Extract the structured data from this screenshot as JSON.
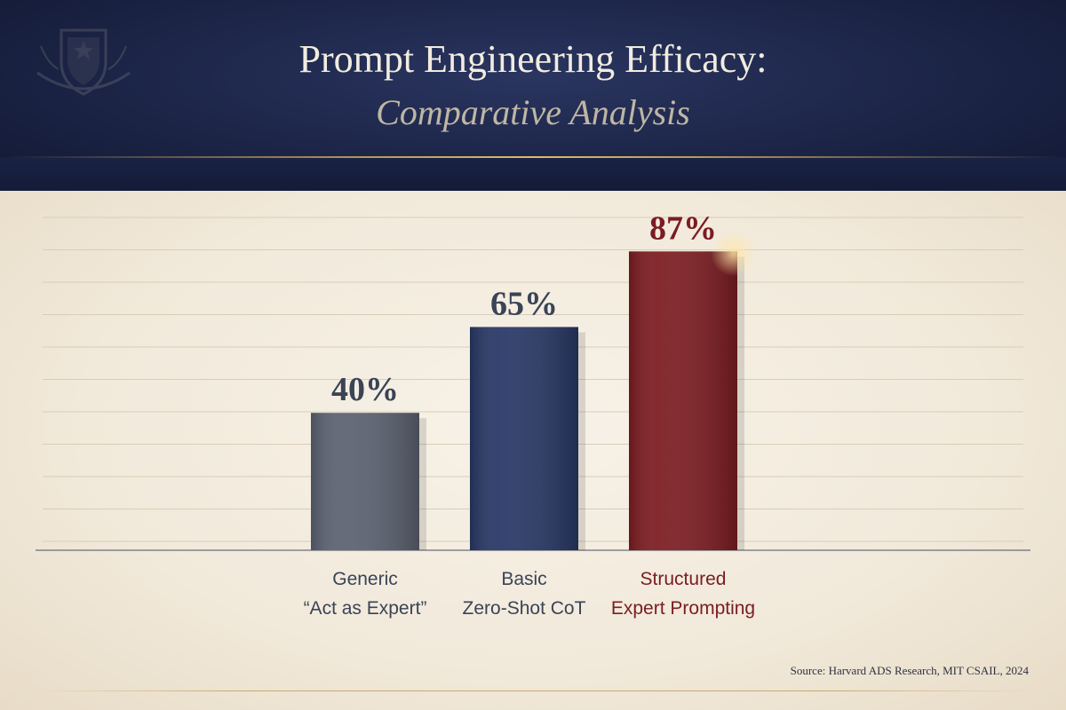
{
  "header": {
    "title": "Prompt Engineering Efficacy:",
    "subtitle": "Comparative Analysis"
  },
  "colors": {
    "header_bg": "#1c2547",
    "paper_bg": "#f3ecdf",
    "accent_gold": "#c9a35f",
    "neutral_text": "#3b4356",
    "highlight_text": "#7a1c24"
  },
  "chart_data": {
    "type": "bar",
    "title": "Prompt Engineering Efficacy: Comparative Analysis",
    "xlabel": "",
    "ylabel": "",
    "ylim": [
      0,
      100
    ],
    "grid": true,
    "categories": [
      [
        "Generic",
        "“Act as Expert”"
      ],
      [
        "Basic",
        "Zero-Shot CoT"
      ],
      [
        "Structured",
        "Expert Prompting"
      ]
    ],
    "values": [
      40,
      65,
      87
    ],
    "value_labels": [
      "40%",
      "65%",
      "87%"
    ],
    "bar_colors": [
      "#5b6271",
      "#283866",
      "#7d1d22"
    ],
    "label_colors": [
      "#3b4356",
      "#3b4356",
      "#7a1c24"
    ]
  },
  "source": "Source: Harvard ADS Research, MIT CSAIL, 2024"
}
